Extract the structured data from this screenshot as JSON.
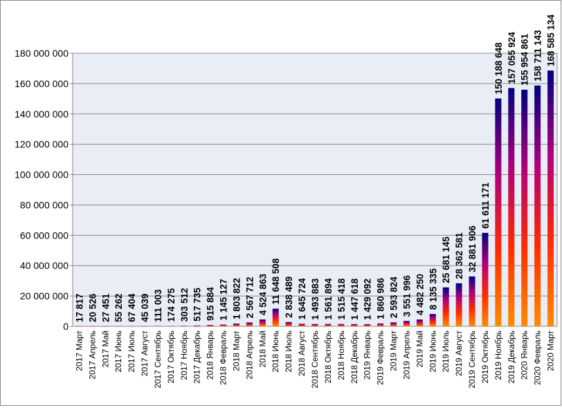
{
  "chart_data": {
    "type": "bar",
    "categories": [
      "2017 Март",
      "2017 Апрель",
      "2017 Май",
      "2017 Июнь",
      "2017 Июль",
      "2017 Август",
      "2017 Сентябрь",
      "2017 Октябрь",
      "2017 Ноябрь",
      "2017 Декабрь",
      "2018 Январь",
      "2018 Февраль",
      "2018 Март",
      "2018 Апрель",
      "2018 Май",
      "2018 Июнь",
      "2018 Июль",
      "2018 Август",
      "2018 Сентябрь",
      "2018 Октябрь",
      "2018 Ноябрь",
      "2018 Декабрь",
      "2019 Январь",
      "2019 Февраль",
      "2019 Март",
      "2019 Апрель",
      "2019 Май",
      "2019 Июнь",
      "2019 Июль",
      "2019 Август",
      "2019 Сентябрь",
      "2019 Октябрь",
      "2019 Ноябрь",
      "2019 Декабрь",
      "2020 Январь",
      "2020 Февраль",
      "2020 Март"
    ],
    "values": [
      17817,
      20526,
      27451,
      55262,
      67404,
      45039,
      111003,
      174275,
      303512,
      517735,
      915884,
      1145127,
      1803822,
      2567712,
      4524863,
      11648508,
      2838489,
      1645724,
      1493883,
      1561894,
      1515418,
      1447618,
      1429092,
      1860986,
      2593824,
      3551996,
      4482250,
      8135335,
      25681145,
      28362581,
      32881906,
      61611171,
      150188648,
      157055924,
      155954861,
      158711143,
      168585134
    ],
    "value_labels": [
      "17 817",
      "20 526",
      "27 451",
      "55 262",
      "67 404",
      "45 039",
      "111 003",
      "174 275",
      "303 512",
      "517 735",
      "915 884",
      "1 145 127",
      "1 803 822",
      "2 567 712",
      "4 524 863",
      "11 648 508",
      "2 838 489",
      "1 645 724",
      "1 493 883",
      "1 561 894",
      "1 515 418",
      "1 447 618",
      "1 429 092",
      "1 860 986",
      "2 593 824",
      "3 551 996",
      "4 482 250",
      "8 135 335",
      "25 681 145",
      "28 362 581",
      "32 881 906",
      "61 611 171",
      "150 188 648",
      "157 055 924",
      "155 954 861",
      "158 711 143",
      "168 585 134"
    ],
    "colors": [
      "#000080",
      "#b0007a",
      "#ff2a00",
      "#ff8c00"
    ],
    "ylim": [
      0,
      180000000
    ],
    "yticks": [
      0,
      {
        "value": 20000000,
        "label": "20 000 000"
      },
      {
        "value": 40000000,
        "label": "40 000 000"
      },
      {
        "value": 60000000,
        "label": "60 000 000"
      },
      {
        "value": 80000000,
        "label": "80 000 000"
      },
      {
        "value": 100000000,
        "label": "100 000 000"
      },
      {
        "value": 120000000,
        "label": "120 000 000"
      },
      {
        "value": 140000000,
        "label": "140 000 000"
      },
      {
        "value": 160000000,
        "label": "160 000 000"
      },
      {
        "value": 180000000,
        "label": "180 000 000"
      }
    ],
    "grid": true
  }
}
